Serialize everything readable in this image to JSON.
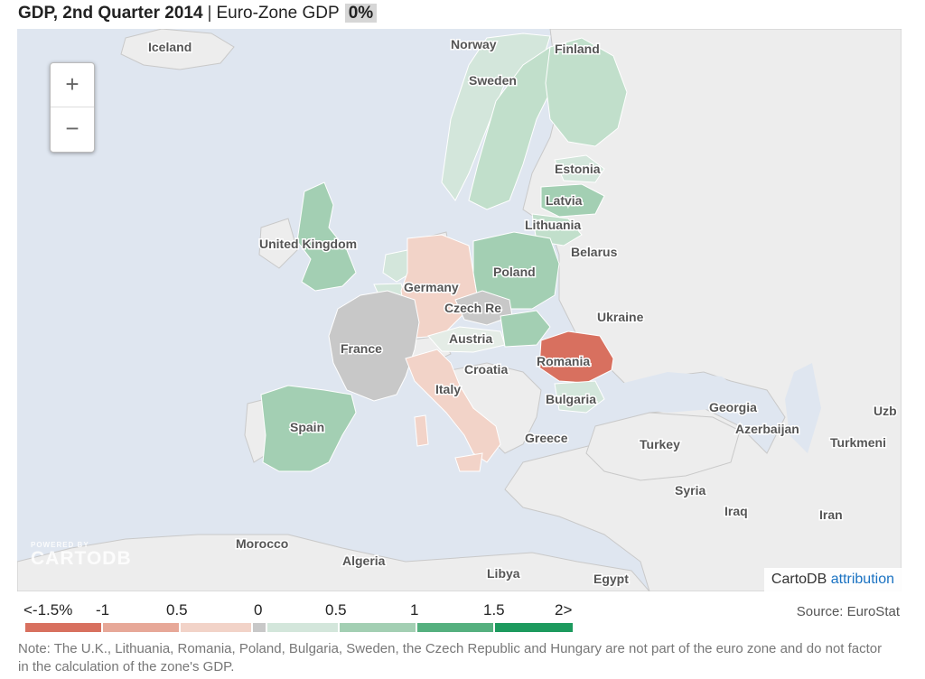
{
  "header": {
    "title": "GDP, 2nd Quarter 2014",
    "separator": "|",
    "subtitle": "Euro-Zone GDP",
    "value": "0%"
  },
  "zoom": {
    "in_label": "+",
    "out_label": "−"
  },
  "logo": {
    "powered": "POWERED BY",
    "name": "CARTODB"
  },
  "attribution": {
    "prefix": "CartoDB",
    "link": "attribution"
  },
  "legend": {
    "labels": [
      "<-1.5%",
      "-1",
      "0.5",
      "0",
      "0.5",
      "1",
      "1.5",
      "2>"
    ],
    "colors": [
      "#d8705f",
      "#e7a898",
      "#f2d3c8",
      "#c8c8c8",
      "#d3e6db",
      "#a3cfb3",
      "#55b07f",
      "#1d9a5e"
    ]
  },
  "source": "Source: EuroStat",
  "note": "Note: The U.K., Lithuania, Romania, Poland, Bulgaria, Sweden, the Czech Republic and Hungary are not part of the euro zone and do not factor in the calculation of the zone's GDP.",
  "map": {
    "labels": {
      "iceland": "Iceland",
      "norway": "Norway",
      "finland": "Finland",
      "sweden": "Sweden",
      "estonia": "Estonia",
      "latvia": "Latvia",
      "lithuania": "Lithuania",
      "uk": "United Kingdom",
      "belarus": "Belarus",
      "poland": "Poland",
      "germany": "Germany",
      "czech": "Czech Re",
      "ukraine": "Ukraine",
      "france": "France",
      "austria": "Austria",
      "romania": "Romania",
      "croatia": "Croatia",
      "italy": "Italy",
      "bulgaria": "Bulgaria",
      "georgia": "Georgia",
      "uzbekistan": "Uzb",
      "azerbaijan": "Azerbaijan",
      "spain": "Spain",
      "greece": "Greece",
      "turkey": "Turkey",
      "turkmenistan": "Turkmeni",
      "syria": "Syria",
      "iraq": "Iraq",
      "iran": "Iran",
      "morocco": "Morocco",
      "algeria": "Algeria",
      "libya": "Libya",
      "egypt": "Egypt"
    },
    "colors": {
      "sea": "#dfe6f0",
      "land": "#ededed",
      "border": "#c9c9c9",
      "romania": "#d8705f",
      "germany": "#f2d3c8",
      "italy": "#f2d3c8",
      "france": "#c8c8c8",
      "czech": "#c8c8c8",
      "poland": "#a3cfb3",
      "uk": "#a3cfb3",
      "spain": "#a3cfb3",
      "hungary": "#a3cfb3",
      "latvia": "#a3cfb3",
      "sweden": "#c1dfcb",
      "finland": "#c1dfcb",
      "norway": "#d3e6db",
      "netherlands": "#d3e6db",
      "austria": "#e4ece6",
      "estonia": "#d3e6db",
      "lithuania": "#c1dfcb",
      "bulgaria": "#d3e6db",
      "belgium": "#d3e6db"
    }
  }
}
